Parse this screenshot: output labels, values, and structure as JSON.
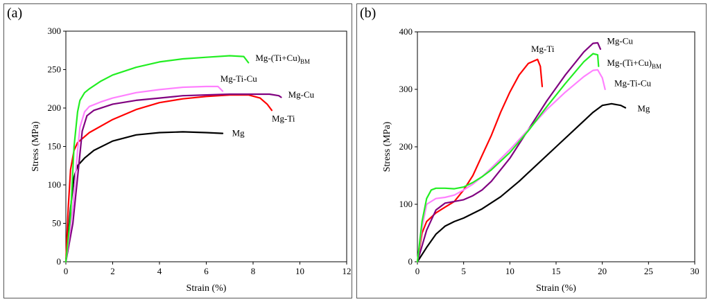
{
  "chart_data": [
    {
      "type": "line",
      "panel_label": "(a)",
      "xlabel": "Strain (%)",
      "ylabel": "Stress (MPa)",
      "xlim": [
        0,
        12
      ],
      "ylim": [
        0,
        300
      ],
      "xticks": [
        0,
        2,
        4,
        6,
        8,
        10,
        12
      ],
      "yticks": [
        0,
        50,
        100,
        150,
        200,
        250,
        300
      ],
      "series": [
        {
          "name": "Mg",
          "label": "Mg",
          "label_sub": "",
          "color": "#000000",
          "x": [
            0,
            0.2,
            0.35,
            0.5,
            0.8,
            1.2,
            2,
            3,
            4,
            5,
            6,
            6.7
          ],
          "y": [
            0,
            70,
            110,
            125,
            135,
            145,
            157,
            165,
            168,
            169,
            168,
            167
          ],
          "label_at": [
            7.1,
            167
          ]
        },
        {
          "name": "Mg-Ti",
          "label": "Mg-Ti",
          "label_sub": "",
          "color": "#ff0000",
          "x": [
            0,
            0.1,
            0.2,
            0.35,
            0.5,
            1,
            2,
            3,
            4,
            5,
            6,
            7,
            7.8,
            8.3,
            8.6,
            8.8
          ],
          "y": [
            0,
            70,
            120,
            145,
            155,
            168,
            185,
            198,
            207,
            212,
            215,
            217,
            217,
            213,
            205,
            197
          ],
          "label_at": [
            8.8,
            186
          ]
        },
        {
          "name": "Mg-Cu",
          "label": "Mg-Cu",
          "label_sub": "",
          "color": "#800080",
          "x": [
            0,
            0.3,
            0.5,
            0.7,
            0.9,
            1.2,
            2,
            3,
            4,
            5,
            6,
            7,
            8,
            8.7,
            9.1,
            9.2
          ],
          "y": [
            0,
            50,
            110,
            170,
            190,
            197,
            205,
            210,
            213,
            216,
            217,
            218,
            218,
            218,
            216,
            214
          ],
          "label_at": [
            9.5,
            217
          ]
        },
        {
          "name": "Mg-Ti-Cu",
          "label": "Mg-Ti-Cu",
          "label_sub": "",
          "color": "#ff80ff",
          "x": [
            0,
            0.3,
            0.5,
            0.6,
            0.8,
            1,
            1.5,
            2,
            3,
            4,
            5,
            6,
            6.5,
            6.7
          ],
          "y": [
            0,
            70,
            145,
            175,
            195,
            202,
            208,
            213,
            220,
            224,
            227,
            228,
            228,
            222
          ],
          "label_at": [
            6.6,
            238
          ]
        },
        {
          "name": "Mg-(Ti+Cu)BM",
          "label": "Mg-(Ti+Cu)",
          "label_sub": "BM",
          "color": "#22ee22",
          "x": [
            0,
            0.2,
            0.35,
            0.5,
            0.6,
            0.8,
            1,
            1.5,
            2,
            3,
            4,
            5,
            6,
            7,
            7.6,
            7.8
          ],
          "y": [
            0,
            60,
            150,
            195,
            210,
            220,
            225,
            235,
            243,
            253,
            260,
            264,
            266,
            268,
            267,
            259
          ],
          "label_at": [
            8.1,
            265
          ]
        }
      ]
    },
    {
      "type": "line",
      "panel_label": "(b)",
      "xlabel": "Strain (%)",
      "ylabel": "Stress (MPa)",
      "xlim": [
        0,
        30
      ],
      "ylim": [
        0,
        400
      ],
      "xticks": [
        0,
        5,
        10,
        15,
        20,
        25,
        30
      ],
      "yticks": [
        0,
        100,
        200,
        300,
        400
      ],
      "series": [
        {
          "name": "Mg",
          "label": "Mg",
          "label_sub": "",
          "color": "#000000",
          "x": [
            0,
            1,
            2,
            3,
            4,
            5,
            7,
            9,
            11,
            13,
            15,
            17,
            19,
            20,
            21,
            22,
            22.5
          ],
          "y": [
            0,
            25,
            48,
            62,
            70,
            76,
            92,
            113,
            140,
            170,
            200,
            230,
            260,
            272,
            275,
            272,
            268
          ],
          "label_at": [
            23.8,
            266
          ]
        },
        {
          "name": "Mg-Ti",
          "label": "Mg-Ti",
          "label_sub": "",
          "color": "#ff0000",
          "x": [
            0,
            0.5,
            1,
            2,
            3,
            4,
            5,
            6,
            7,
            8,
            9,
            10,
            11,
            12,
            13,
            13.3,
            13.5
          ],
          "y": [
            0,
            50,
            70,
            85,
            95,
            105,
            125,
            150,
            185,
            220,
            260,
            295,
            325,
            345,
            352,
            340,
            305
          ],
          "label_at": [
            12.3,
            370
          ]
        },
        {
          "name": "Mg-Cu",
          "label": "Mg-Cu",
          "label_sub": "",
          "color": "#800080",
          "x": [
            0,
            1,
            2,
            3,
            4,
            5,
            6,
            7,
            8,
            10,
            12,
            14,
            16,
            18,
            19,
            19.5,
            19.8
          ],
          "y": [
            0,
            55,
            90,
            102,
            105,
            108,
            115,
            125,
            140,
            180,
            230,
            280,
            325,
            365,
            380,
            381,
            370
          ],
          "label_at": [
            20.5,
            384
          ]
        },
        {
          "name": "Mg-Ti-Cu",
          "label": "Mg-Ti-Cu",
          "label_sub": "",
          "color": "#ff80ff",
          "x": [
            0,
            0.5,
            1,
            2,
            3,
            4,
            5,
            6,
            7,
            8,
            10,
            12,
            14,
            16,
            18,
            19,
            19.5,
            20,
            20.3
          ],
          "y": [
            0,
            60,
            100,
            110,
            112,
            116,
            125,
            135,
            148,
            163,
            195,
            230,
            265,
            295,
            322,
            333,
            334,
            320,
            300
          ],
          "label_at": [
            21.3,
            310
          ]
        },
        {
          "name": "Mg-(Ti+Cu)BM",
          "label": "Mg-(Ti+Cu)",
          "label_sub": "BM",
          "color": "#22ee22",
          "x": [
            0,
            0.5,
            1,
            1.5,
            2,
            3,
            4,
            5,
            6,
            7,
            8,
            10,
            12,
            14,
            16,
            18,
            19,
            19.5,
            19.6
          ],
          "y": [
            0,
            70,
            110,
            125,
            128,
            128,
            127,
            130,
            138,
            148,
            160,
            190,
            228,
            270,
            310,
            348,
            362,
            360,
            340
          ],
          "label_at": [
            20.5,
            346
          ]
        }
      ]
    }
  ]
}
